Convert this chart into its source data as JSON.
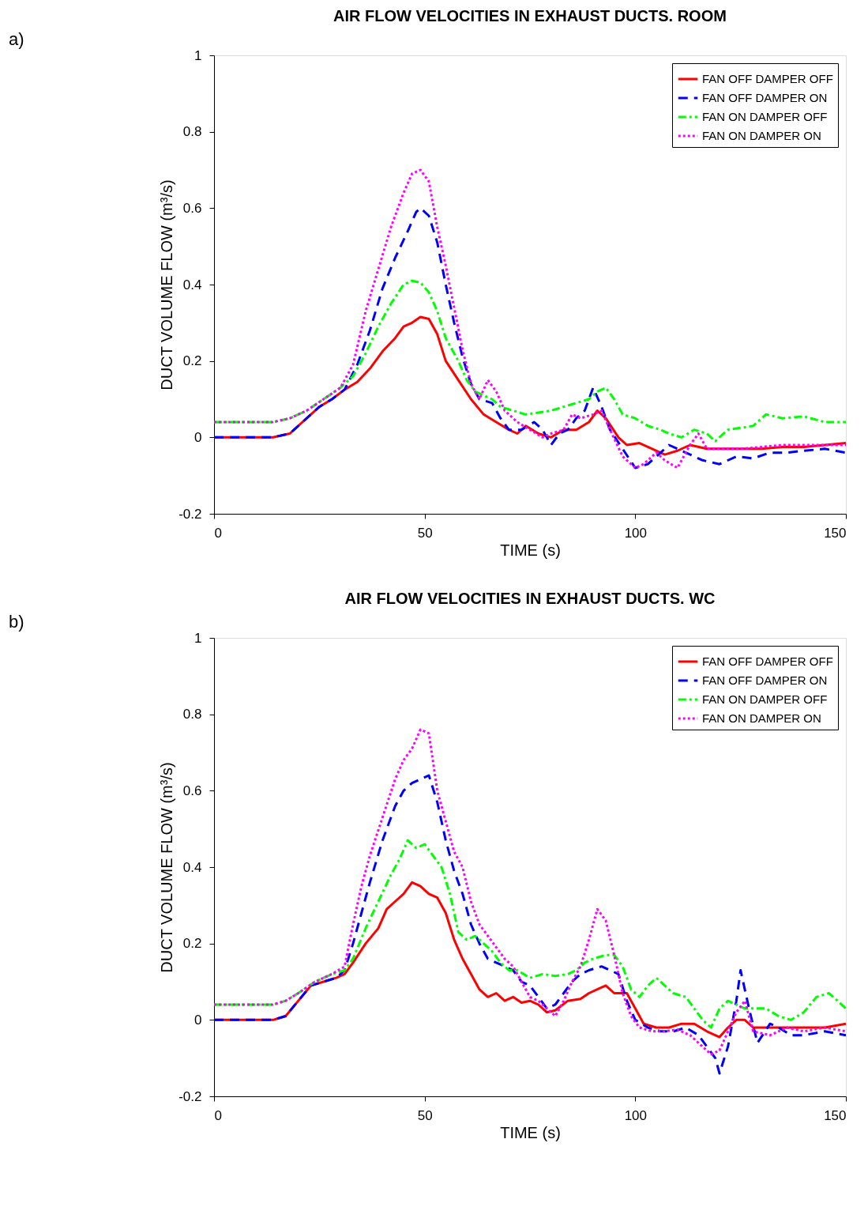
{
  "chart_data": [
    {
      "type": "line",
      "title": "AIR FLOW VELOCITIES IN EXHAUST DUCTS. ROOM",
      "xlabel": "TIME (s)",
      "ylabel": "DUCT VOLUME FLOW (m³/s)",
      "annotations": [
        "a)"
      ],
      "xlim": [
        0,
        150
      ],
      "xticks": [
        0,
        50,
        100,
        150
      ],
      "ylim": [
        -0.2,
        1
      ],
      "yticks": [
        -0.2,
        0,
        0.2,
        0.4,
        0.6,
        0.8,
        1
      ],
      "grid": false,
      "legend": "top right",
      "series": [
        {
          "name": "FAN OFF DAMPER OFF",
          "color": "#ff0000",
          "line_style": "solid",
          "x": [
            0,
            14,
            18,
            22,
            25,
            28,
            31,
            34,
            37,
            40,
            43,
            45,
            47,
            49,
            51,
            53,
            55,
            58,
            61,
            64,
            67,
            70,
            72,
            74,
            77,
            80,
            83,
            86,
            89,
            91,
            93,
            96,
            98,
            101,
            104,
            107,
            110,
            113,
            117,
            120,
            125,
            130,
            135,
            140,
            145,
            150
          ],
          "values": [
            0,
            0,
            0.01,
            0.05,
            0.08,
            0.1,
            0.125,
            0.145,
            0.18,
            0.225,
            0.26,
            0.29,
            0.3,
            0.315,
            0.31,
            0.27,
            0.2,
            0.15,
            0.1,
            0.06,
            0.04,
            0.02,
            0.01,
            0.03,
            0.01,
            0,
            0.02,
            0.02,
            0.04,
            0.07,
            0.05,
            0,
            -0.02,
            -0.015,
            -0.03,
            -0.045,
            -0.035,
            -0.02,
            -0.03,
            -0.03,
            -0.03,
            -0.03,
            -0.025,
            -0.025,
            -0.02,
            -0.015
          ]
        },
        {
          "name": "FAN OFF DAMPER ON",
          "color": "#0000ff",
          "line_style": "dashed",
          "x": [
            0,
            14,
            18,
            22,
            25,
            28,
            31,
            34,
            37,
            40,
            43,
            46,
            48,
            49,
            51,
            53,
            55,
            57,
            59,
            61,
            63,
            66,
            68,
            70,
            73,
            76,
            78,
            80,
            82,
            84,
            86,
            88,
            90,
            92,
            94,
            97,
            100,
            103,
            106,
            108,
            112,
            116,
            120,
            124,
            128,
            132,
            136,
            140,
            145,
            150
          ],
          "values": [
            0,
            0,
            0.01,
            0.05,
            0.08,
            0.1,
            0.125,
            0.19,
            0.28,
            0.39,
            0.47,
            0.54,
            0.59,
            0.6,
            0.58,
            0.51,
            0.4,
            0.3,
            0.21,
            0.14,
            0.1,
            0.09,
            0.05,
            0.02,
            0.02,
            0.04,
            0.02,
            -0.02,
            0.01,
            0.02,
            0.05,
            0.07,
            0.13,
            0.08,
            0.02,
            -0.03,
            -0.08,
            -0.07,
            -0.04,
            -0.02,
            -0.04,
            -0.06,
            -0.07,
            -0.05,
            -0.055,
            -0.04,
            -0.04,
            -0.035,
            -0.03,
            -0.04
          ]
        },
        {
          "name": "FAN ON DAMPER OFF",
          "color": "#00ff00",
          "line_style": "dashdot",
          "x": [
            0,
            14,
            18,
            22,
            26,
            30,
            33,
            36,
            39,
            42,
            45,
            47,
            49,
            51,
            53,
            55,
            58,
            60,
            62,
            64,
            66,
            68,
            71,
            74,
            77,
            80,
            83,
            86,
            89,
            91,
            93,
            95,
            97,
            100,
            103,
            106,
            108,
            111,
            114,
            117,
            119,
            122,
            125,
            128,
            131,
            135,
            140,
            145,
            150
          ],
          "values": [
            0.04,
            0.04,
            0.05,
            0.07,
            0.1,
            0.13,
            0.16,
            0.22,
            0.29,
            0.35,
            0.4,
            0.41,
            0.405,
            0.38,
            0.33,
            0.26,
            0.2,
            0.15,
            0.12,
            0.11,
            0.1,
            0.08,
            0.07,
            0.06,
            0.065,
            0.07,
            0.08,
            0.09,
            0.1,
            0.12,
            0.13,
            0.1,
            0.06,
            0.05,
            0.03,
            0.02,
            0.01,
            0,
            0.02,
            0.01,
            -0.01,
            0.02,
            0.025,
            0.03,
            0.06,
            0.05,
            0.055,
            0.04,
            0.04
          ]
        },
        {
          "name": "FAN ON DAMPER ON",
          "color": "#ff00ff",
          "line_style": "dotted",
          "x": [
            0,
            14,
            18,
            22,
            26,
            30,
            33,
            36,
            39,
            42,
            45,
            47,
            49,
            51,
            53,
            55,
            57,
            59,
            61,
            63,
            65,
            67,
            69,
            72,
            75,
            78,
            80,
            83,
            85,
            87,
            90,
            92,
            94,
            97,
            100,
            102,
            105,
            107,
            110,
            113,
            115,
            117,
            120,
            125,
            130,
            135,
            140,
            145,
            150
          ],
          "values": [
            0.04,
            0.04,
            0.05,
            0.07,
            0.1,
            0.13,
            0.19,
            0.33,
            0.44,
            0.55,
            0.64,
            0.69,
            0.7,
            0.67,
            0.55,
            0.45,
            0.34,
            0.23,
            0.14,
            0.1,
            0.15,
            0.12,
            0.07,
            0.04,
            0.02,
            0,
            0.01,
            0.02,
            0.06,
            0.05,
            0.06,
            0.07,
            0.02,
            -0.05,
            -0.08,
            -0.07,
            -0.04,
            -0.06,
            -0.08,
            -0.02,
            0.01,
            -0.03,
            -0.03,
            -0.03,
            -0.025,
            -0.02,
            -0.02,
            -0.02,
            -0.02
          ]
        }
      ]
    },
    {
      "type": "line",
      "title": "AIR FLOW VELOCITIES IN EXHAUST DUCTS. WC",
      "xlabel": "TIME (s)",
      "ylabel": "DUCT VOLUME FLOW (m³/s)",
      "annotations": [
        "b)"
      ],
      "xlim": [
        0,
        150
      ],
      "xticks": [
        0,
        50,
        100,
        150
      ],
      "ylim": [
        -0.2,
        1
      ],
      "yticks": [
        -0.2,
        0,
        0.2,
        0.4,
        0.6,
        0.8,
        1
      ],
      "grid": false,
      "legend": "top right",
      "series": [
        {
          "name": "FAN OFF DAMPER OFF",
          "color": "#ff0000",
          "line_style": "solid",
          "x": [
            0,
            14,
            17,
            20,
            23,
            26,
            29,
            31,
            33,
            36,
            39,
            41,
            43,
            45,
            47,
            49,
            51,
            53,
            55,
            57,
            59,
            61,
            63,
            65,
            67,
            69,
            71,
            73,
            75,
            77,
            79,
            81,
            84,
            87,
            89,
            91,
            93,
            95,
            98,
            100,
            102,
            105,
            108,
            111,
            114,
            117,
            120,
            122,
            124,
            126,
            128,
            132,
            136,
            140,
            145,
            150
          ],
          "values": [
            0,
            0,
            0.01,
            0.05,
            0.09,
            0.1,
            0.11,
            0.12,
            0.15,
            0.2,
            0.24,
            0.29,
            0.31,
            0.33,
            0.36,
            0.35,
            0.33,
            0.32,
            0.28,
            0.21,
            0.16,
            0.12,
            0.08,
            0.06,
            0.07,
            0.05,
            0.06,
            0.045,
            0.05,
            0.04,
            0.02,
            0.025,
            0.05,
            0.055,
            0.07,
            0.08,
            0.09,
            0.07,
            0.07,
            0.03,
            -0.01,
            -0.02,
            -0.02,
            -0.01,
            -0.01,
            -0.03,
            -0.045,
            -0.02,
            0,
            0,
            -0.02,
            -0.02,
            -0.02,
            -0.02,
            -0.02,
            -0.01
          ]
        },
        {
          "name": "FAN OFF DAMPER ON",
          "color": "#0000ff",
          "line_style": "dashed",
          "x": [
            0,
            14,
            17,
            20,
            23,
            26,
            29,
            31,
            33,
            35,
            37,
            40,
            43,
            45,
            47,
            49,
            51,
            53,
            55,
            57,
            59,
            61,
            63,
            65,
            67,
            69,
            71,
            73,
            75,
            77,
            79,
            81,
            83,
            85,
            87,
            89,
            92,
            94,
            96,
            98,
            100,
            103,
            106,
            109,
            112,
            115,
            117,
            119,
            120,
            122,
            124,
            125,
            127,
            129,
            132,
            134,
            137,
            140,
            145,
            150
          ],
          "values": [
            0,
            0,
            0.01,
            0.05,
            0.09,
            0.1,
            0.11,
            0.13,
            0.2,
            0.28,
            0.36,
            0.47,
            0.56,
            0.6,
            0.62,
            0.63,
            0.64,
            0.57,
            0.47,
            0.39,
            0.33,
            0.25,
            0.2,
            0.16,
            0.15,
            0.14,
            0.13,
            0.1,
            0.09,
            0.06,
            0.03,
            0.04,
            0.07,
            0.1,
            0.12,
            0.13,
            0.14,
            0.13,
            0.12,
            0.05,
            0,
            -0.02,
            -0.03,
            -0.03,
            -0.02,
            -0.04,
            -0.07,
            -0.1,
            -0.14,
            -0.07,
            0.05,
            0.13,
            0.03,
            -0.06,
            -0.01,
            -0.02,
            -0.04,
            -0.04,
            -0.03,
            -0.04
          ]
        },
        {
          "name": "FAN ON DAMPER OFF",
          "color": "#00ff00",
          "line_style": "dashdot",
          "x": [
            0,
            14,
            17,
            20,
            24,
            28,
            31,
            33,
            36,
            39,
            42,
            44,
            46,
            48,
            50,
            52,
            54,
            56,
            58,
            60,
            62,
            64,
            66,
            68,
            70,
            72,
            75,
            78,
            81,
            84,
            86,
            88,
            90,
            93,
            95,
            97,
            99,
            101,
            103,
            105,
            107,
            109,
            112,
            114,
            116,
            118,
            120,
            122,
            124,
            126,
            128,
            131,
            134,
            137,
            140,
            143,
            146,
            150
          ],
          "values": [
            0.04,
            0.04,
            0.05,
            0.07,
            0.1,
            0.12,
            0.13,
            0.16,
            0.24,
            0.31,
            0.38,
            0.42,
            0.47,
            0.45,
            0.46,
            0.43,
            0.4,
            0.33,
            0.23,
            0.21,
            0.22,
            0.2,
            0.18,
            0.15,
            0.13,
            0.13,
            0.11,
            0.12,
            0.115,
            0.12,
            0.13,
            0.15,
            0.16,
            0.17,
            0.17,
            0.14,
            0.08,
            0.06,
            0.09,
            0.11,
            0.09,
            0.07,
            0.06,
            0.03,
            0,
            -0.02,
            0.03,
            0.05,
            0.04,
            0.03,
            0.03,
            0.03,
            0.01,
            0,
            0.02,
            0.06,
            0.07,
            0.03
          ]
        },
        {
          "name": "FAN ON DAMPER ON",
          "color": "#ff00ff",
          "line_style": "dotted",
          "x": [
            0,
            14,
            17,
            20,
            24,
            28,
            31,
            33,
            35,
            37,
            40,
            43,
            45,
            47,
            49,
            51,
            53,
            55,
            57,
            59,
            61,
            63,
            65,
            67,
            69,
            71,
            73,
            75,
            77,
            79,
            81,
            83,
            85,
            87,
            89,
            91,
            93,
            95,
            97,
            99,
            101,
            104,
            107,
            110,
            113,
            116,
            118,
            120,
            122,
            124,
            126,
            128,
            132,
            136,
            140,
            145,
            150
          ],
          "values": [
            0.04,
            0.04,
            0.05,
            0.07,
            0.1,
            0.12,
            0.14,
            0.25,
            0.35,
            0.43,
            0.53,
            0.63,
            0.68,
            0.71,
            0.76,
            0.75,
            0.6,
            0.52,
            0.44,
            0.4,
            0.31,
            0.25,
            0.22,
            0.19,
            0.16,
            0.14,
            0.1,
            0.06,
            0.05,
            0.03,
            0.01,
            0.05,
            0.1,
            0.14,
            0.21,
            0.29,
            0.26,
            0.17,
            0.07,
            0.01,
            -0.02,
            -0.03,
            -0.03,
            -0.025,
            -0.04,
            -0.07,
            -0.09,
            -0.08,
            -0.03,
            0.02,
            0.05,
            -0.03,
            -0.04,
            -0.02,
            -0.03,
            -0.02,
            -0.03
          ]
        }
      ]
    }
  ]
}
